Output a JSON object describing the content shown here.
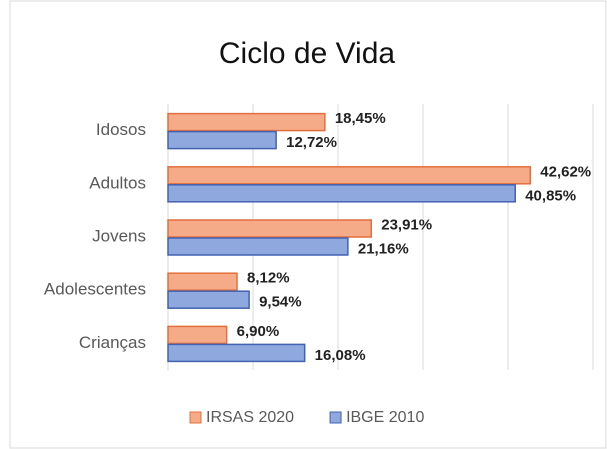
{
  "chart_data": {
    "type": "hbar",
    "title": "Ciclo de Vida",
    "categories": [
      "Idosos",
      "Adultos",
      "Jovens",
      "Adolescentes",
      "Crianças"
    ],
    "series": [
      {
        "name": "IRSAS 2020",
        "color": "#f6ab88",
        "values": [
          18.45,
          42.62,
          23.91,
          8.12,
          6.9
        ],
        "value_labels": [
          "18,45%",
          "42,62%",
          "23,91%",
          "8,12%",
          "6,90%"
        ]
      },
      {
        "name": "IBGE 2010",
        "color": "#8fa8de",
        "values": [
          12.72,
          40.85,
          21.16,
          9.54,
          16.08
        ],
        "value_labels": [
          "12,72%",
          "40,85%",
          "21,16%",
          "9,54%",
          "16,08%"
        ]
      }
    ],
    "xlim": [
      0,
      50
    ],
    "xticks": [
      0,
      10,
      20,
      30,
      40,
      50
    ],
    "grid": true,
    "legend": "bottom"
  }
}
